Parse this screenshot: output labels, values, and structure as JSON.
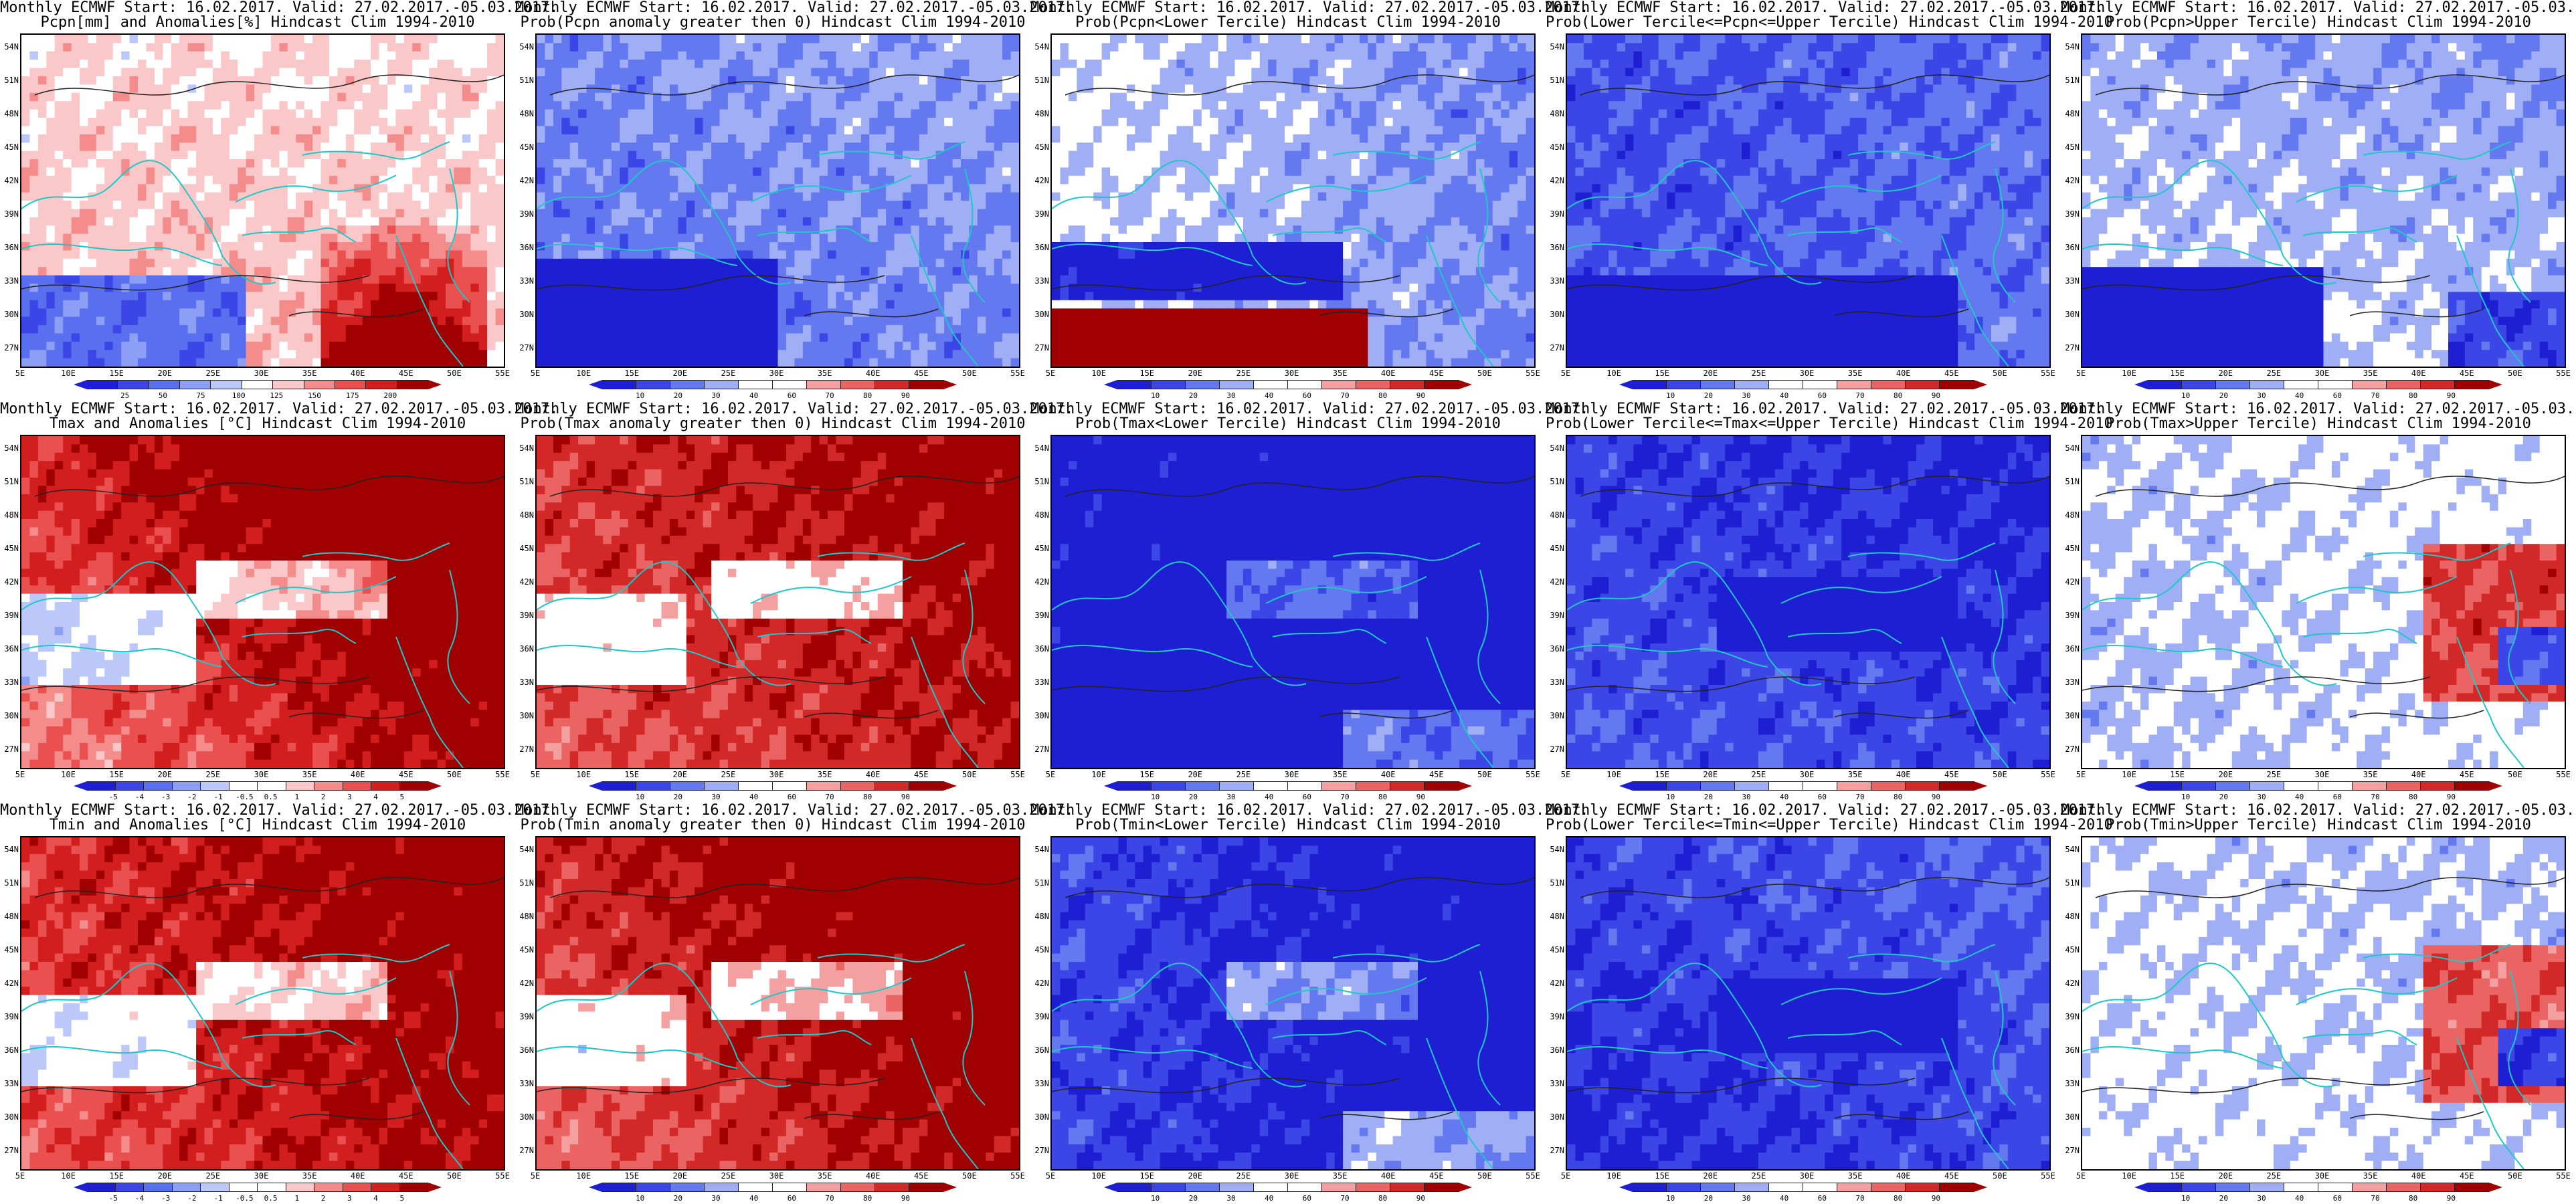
{
  "header_line": "Monthly ECMWF Start: 16.02.2017. Valid: 27.02.2017.-05.03.2017.",
  "lat_labels": [
    "54N",
    "51N",
    "48N",
    "45N",
    "42N",
    "39N",
    "36N",
    "33N",
    "30N",
    "27N"
  ],
  "lon_labels": [
    "5E",
    "10E",
    "15E",
    "20E",
    "25E",
    "30E",
    "35E",
    "40E",
    "45E",
    "50E",
    "55E"
  ],
  "palettes": {
    "precip_anom": [
      "#1e1ed2",
      "#3c46e6",
      "#5a6ef0",
      "#8c9ff5",
      "#bcc8fa",
      "#ffffff",
      "#fac8c8",
      "#f58c8c",
      "#eb5050",
      "#d21e1e",
      "#a00000"
    ],
    "temp_anom": [
      "#1e1ed2",
      "#3c46e6",
      "#5a6ef0",
      "#8c9ff5",
      "#bcc8fa",
      "#ffffff",
      "#ffffff",
      "#fac8c8",
      "#f58c8c",
      "#eb5050",
      "#d21e1e",
      "#a00000"
    ],
    "prob": [
      "#1e1ed2",
      "#3c46e6",
      "#6478f0",
      "#a0aff5",
      "#ffffff",
      "#ffffff",
      "#f5a0a0",
      "#eb6464",
      "#d22828",
      "#a00000"
    ]
  },
  "panels": [
    {
      "title": "Pcpn[mm] and Anomalies[%] Hindcast Clim 1994-2010",
      "palette": "precip_anom",
      "field": "pcpn_anom",
      "labels": [
        "25",
        "50",
        "75",
        "100",
        "125",
        "150",
        "175",
        "200"
      ]
    },
    {
      "title": "Prob(Pcpn anomaly greater then 0) Hindcast Clim 1994-2010",
      "palette": "prob",
      "field": "pcpn_prob",
      "labels": [
        "10",
        "20",
        "30",
        "40",
        "60",
        "70",
        "80",
        "90"
      ]
    },
    {
      "title": "Prob(Pcpn<Lower Tercile) Hindcast Clim 1994-2010",
      "palette": "prob",
      "field": "pcpn_low",
      "labels": [
        "10",
        "20",
        "30",
        "40",
        "60",
        "70",
        "80",
        "90"
      ]
    },
    {
      "title": "Prob(Lower Tercile<=Pcpn<=Upper Tercile) Hindcast Clim 1994-2010",
      "palette": "prob",
      "field": "pcpn_mid",
      "labels": [
        "10",
        "20",
        "30",
        "40",
        "60",
        "70",
        "80",
        "90"
      ]
    },
    {
      "title": "Prob(Pcpn>Upper Tercile) Hindcast Clim 1994-2010",
      "palette": "prob",
      "field": "pcpn_up",
      "labels": [
        "10",
        "20",
        "30",
        "40",
        "60",
        "70",
        "80",
        "90"
      ]
    },
    {
      "title": "Tmax and Anomalies [°C] Hindcast Clim 1994-2010",
      "palette": "temp_anom",
      "field": "t_anom",
      "labels": [
        "-5",
        "-4",
        "-3",
        "-2",
        "-1",
        "-0.5",
        "0.5",
        "1",
        "2",
        "3",
        "4",
        "5"
      ]
    },
    {
      "title": "Prob(Tmax anomaly greater then 0) Hindcast Clim 1994-2010",
      "palette": "prob",
      "field": "t_prob",
      "labels": [
        "10",
        "20",
        "30",
        "40",
        "60",
        "70",
        "80",
        "90"
      ]
    },
    {
      "title": "Prob(Tmax<Lower Tercile) Hindcast Clim 1994-2010",
      "palette": "prob",
      "field": "t_low",
      "labels": [
        "10",
        "20",
        "30",
        "40",
        "60",
        "70",
        "80",
        "90"
      ]
    },
    {
      "title": "Prob(Lower Tercile<=Tmax<=Upper Tercile) Hindcast Clim 1994-2010",
      "palette": "prob",
      "field": "t_mid",
      "labels": [
        "10",
        "20",
        "30",
        "40",
        "60",
        "70",
        "80",
        "90"
      ]
    },
    {
      "title": "Prob(Tmax>Upper Tercile) Hindcast Clim 1994-2010",
      "palette": "prob",
      "field": "t_up",
      "labels": [
        "10",
        "20",
        "30",
        "40",
        "60",
        "70",
        "80",
        "90"
      ]
    },
    {
      "title": "Tmin and Anomalies [°C] Hindcast Clim 1994-2010",
      "palette": "temp_anom",
      "field": "t_anom",
      "labels": [
        "-5",
        "-4",
        "-3",
        "-2",
        "-1",
        "-0.5",
        "0.5",
        "1",
        "2",
        "3",
        "4",
        "5"
      ]
    },
    {
      "title": "Prob(Tmin anomaly greater then 0) Hindcast Clim 1994-2010",
      "palette": "prob",
      "field": "t_prob",
      "labels": [
        "10",
        "20",
        "30",
        "40",
        "60",
        "70",
        "80",
        "90"
      ]
    },
    {
      "title": "Prob(Tmin<Lower Tercile) Hindcast Clim 1994-2010",
      "palette": "prob",
      "field": "t_low",
      "labels": [
        "10",
        "20",
        "30",
        "40",
        "60",
        "70",
        "80",
        "90"
      ]
    },
    {
      "title": "Prob(Lower Tercile<=Tmin<=Upper Tercile) Hindcast Clim 1994-2010",
      "palette": "prob",
      "field": "t_mid",
      "labels": [
        "10",
        "20",
        "30",
        "40",
        "60",
        "70",
        "80",
        "90"
      ]
    },
    {
      "title": "Prob(Tmin>Upper Tercile) Hindcast Clim 1994-2010",
      "palette": "prob",
      "field": "t_up",
      "labels": [
        "10",
        "20",
        "30",
        "40",
        "60",
        "70",
        "80",
        "90"
      ]
    }
  ]
}
